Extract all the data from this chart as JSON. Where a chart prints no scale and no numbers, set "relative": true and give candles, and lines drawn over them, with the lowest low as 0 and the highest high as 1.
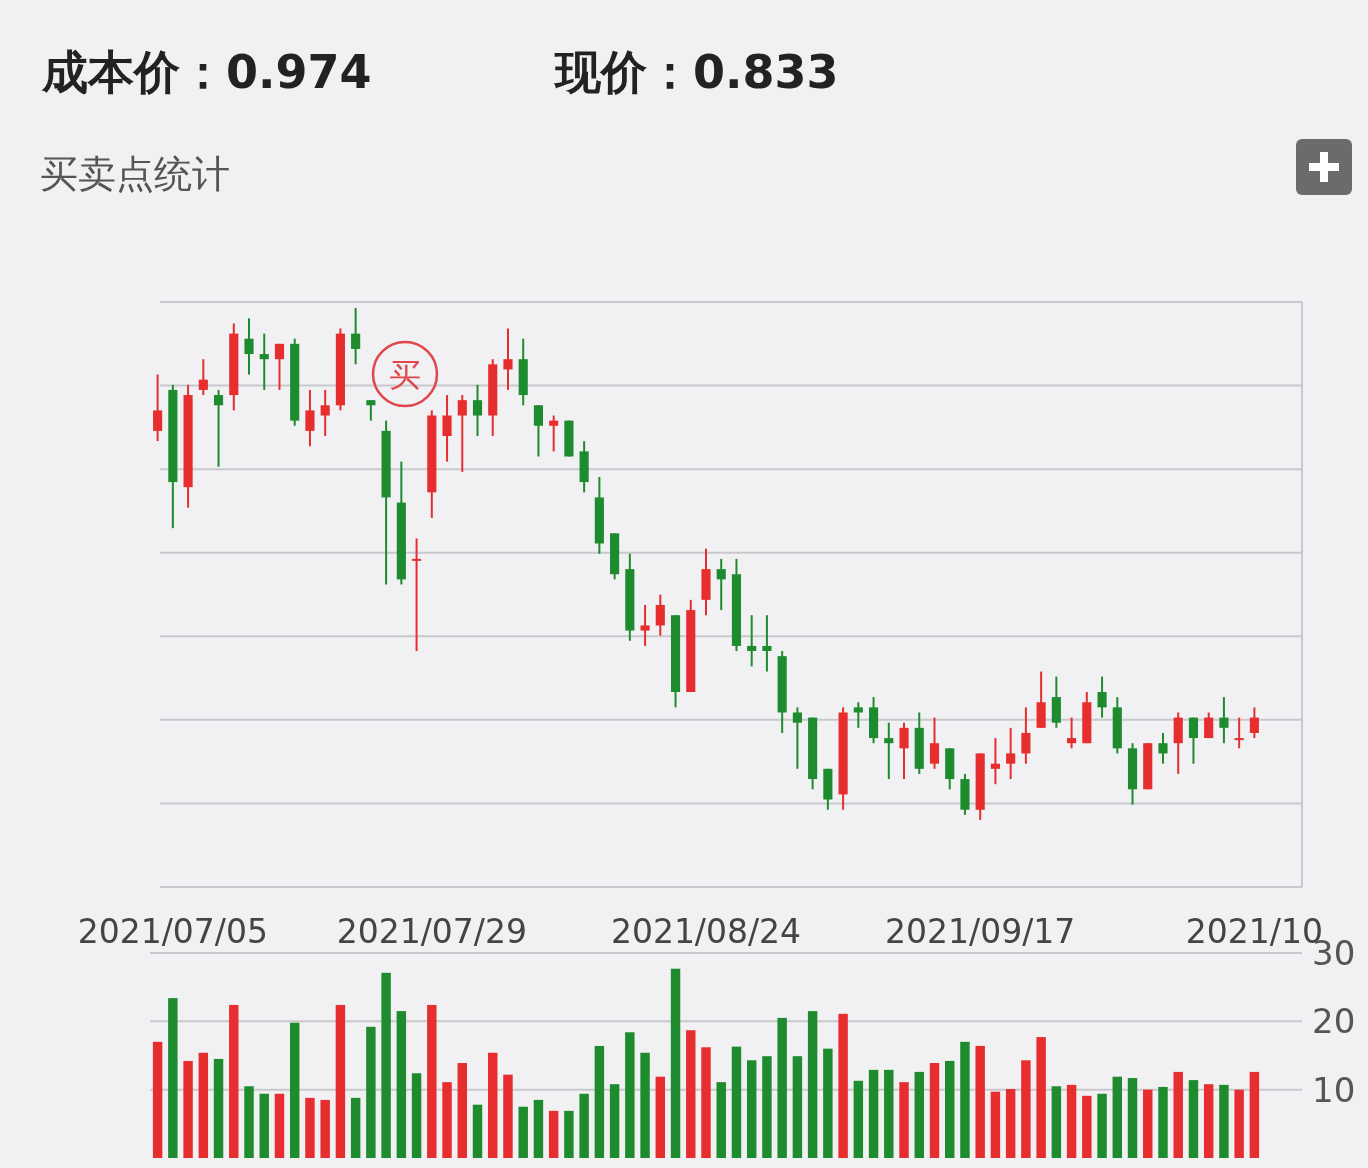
{
  "chart_data": [
    {
      "type": "candlestick",
      "title": "买卖点统计",
      "annotations": [
        "成本价：0.974",
        "现价：0.833",
        "买"
      ],
      "relative": true,
      "grid": "y",
      "categories": [
        null,
        "2021/07/05",
        null,
        null,
        null,
        null,
        null,
        null,
        null,
        null,
        null,
        null,
        null,
        null,
        null,
        null,
        null,
        null,
        "2021/07/29",
        null,
        null,
        null,
        null,
        null,
        null,
        null,
        null,
        null,
        null,
        null,
        null,
        null,
        null,
        null,
        null,
        null,
        "2021/08/24",
        null,
        null,
        null,
        null,
        null,
        null,
        null,
        null,
        null,
        null,
        null,
        null,
        null,
        null,
        null,
        null,
        null,
        "2021/09/17",
        null,
        null,
        null,
        null,
        null,
        null,
        null,
        null,
        null,
        null,
        null,
        null,
        null,
        null,
        null,
        null,
        null,
        "2021/10"
      ],
      "ohlc": [
        [
          0.76,
          0.87,
          0.74,
          0.8
        ],
        [
          0.84,
          0.85,
          0.57,
          0.66
        ],
        [
          0.65,
          0.85,
          0.61,
          0.83
        ],
        [
          0.84,
          0.9,
          0.83,
          0.86
        ],
        [
          0.83,
          0.84,
          0.69,
          0.81
        ],
        [
          0.83,
          0.97,
          0.8,
          0.95
        ],
        [
          0.94,
          0.98,
          0.87,
          0.91
        ],
        [
          0.91,
          0.95,
          0.84,
          0.9
        ],
        [
          0.9,
          0.93,
          0.84,
          0.93
        ],
        [
          0.93,
          0.94,
          0.77,
          0.78
        ],
        [
          0.76,
          0.84,
          0.73,
          0.8
        ],
        [
          0.79,
          0.84,
          0.75,
          0.81
        ],
        [
          0.81,
          0.96,
          0.8,
          0.95
        ],
        [
          0.95,
          1,
          0.89,
          0.92
        ],
        [
          0.82,
          0.82,
          0.78,
          0.81
        ],
        [
          0.76,
          0.78,
          0.46,
          0.63
        ],
        [
          0.62,
          0.7,
          0.46,
          0.47
        ],
        [
          0.51,
          0.55,
          0.33,
          0.51
        ],
        [
          0.64,
          0.8,
          0.59,
          0.79
        ],
        [
          0.75,
          0.83,
          0.7,
          0.79
        ],
        [
          0.79,
          0.83,
          0.68,
          0.82
        ],
        [
          0.82,
          0.85,
          0.75,
          0.79
        ],
        [
          0.79,
          0.9,
          0.75,
          0.89
        ],
        [
          0.88,
          0.96,
          0.84,
          0.9
        ],
        [
          0.9,
          0.94,
          0.81,
          0.83
        ],
        [
          0.81,
          0.81,
          0.71,
          0.77
        ],
        [
          0.77,
          0.79,
          0.72,
          0.78
        ],
        [
          0.78,
          0.78,
          0.71,
          0.71
        ],
        [
          0.72,
          0.74,
          0.64,
          0.66
        ],
        [
          0.63,
          0.67,
          0.52,
          0.54
        ],
        [
          0.56,
          0.56,
          0.47,
          0.48
        ],
        [
          0.49,
          0.52,
          0.35,
          0.37
        ],
        [
          0.37,
          0.42,
          0.34,
          0.38
        ],
        [
          0.38,
          0.44,
          0.36,
          0.42
        ],
        [
          0.4,
          0.4,
          0.22,
          0.25
        ],
        [
          0.25,
          0.43,
          0.25,
          0.41
        ],
        [
          0.43,
          0.53,
          0.4,
          0.49
        ],
        [
          0.49,
          0.51,
          0.41,
          0.47
        ],
        [
          0.48,
          0.51,
          0.33,
          0.34
        ],
        [
          0.34,
          0.4,
          0.3,
          0.33
        ],
        [
          0.34,
          0.4,
          0.29,
          0.33
        ],
        [
          0.32,
          0.33,
          0.17,
          0.21
        ],
        [
          0.21,
          0.22,
          0.1,
          0.19
        ],
        [
          0.2,
          0.2,
          0.06,
          0.08
        ],
        [
          0.1,
          0.1,
          0.02,
          0.04
        ],
        [
          0.05,
          0.22,
          0.02,
          0.21
        ],
        [
          0.22,
          0.23,
          0.18,
          0.21
        ],
        [
          0.22,
          0.24,
          0.15,
          0.16
        ],
        [
          0.16,
          0.19,
          0.08,
          0.15
        ],
        [
          0.14,
          0.19,
          0.08,
          0.18
        ],
        [
          0.18,
          0.21,
          0.09,
          0.1
        ],
        [
          0.11,
          0.2,
          0.1,
          0.15
        ],
        [
          0.14,
          0.14,
          0.06,
          0.08
        ],
        [
          0.08,
          0.09,
          0.01,
          0.02
        ],
        [
          0.02,
          0.13,
          0,
          0.13
        ],
        [
          0.1,
          0.16,
          0.07,
          0.11
        ],
        [
          0.11,
          0.18,
          0.08,
          0.13
        ],
        [
          0.13,
          0.22,
          0.11,
          0.17
        ],
        [
          0.18,
          0.29,
          0.18,
          0.23
        ],
        [
          0.24,
          0.28,
          0.18,
          0.19
        ],
        [
          0.15,
          0.2,
          0.14,
          0.16
        ],
        [
          0.15,
          0.25,
          0.15,
          0.23
        ],
        [
          0.25,
          0.28,
          0.2,
          0.22
        ],
        [
          0.22,
          0.24,
          0.13,
          0.14
        ],
        [
          0.14,
          0.15,
          0.03,
          0.06
        ],
        [
          0.06,
          0.15,
          0.06,
          0.15
        ],
        [
          0.15,
          0.17,
          0.11,
          0.13
        ],
        [
          0.15,
          0.21,
          0.09,
          0.2
        ],
        [
          0.2,
          0.2,
          0.11,
          0.16
        ],
        [
          0.16,
          0.21,
          0.16,
          0.2
        ],
        [
          0.2,
          0.24,
          0.15,
          0.18
        ],
        [
          0.16,
          0.2,
          0.14,
          0.16
        ],
        [
          0.17,
          0.22,
          0.16,
          0.2
        ]
      ],
      "colors": [
        "#e62e2e",
        "#1e8c2e",
        "#e62e2e",
        "#e62e2e",
        "#1e8c2e",
        "#e62e2e",
        "#1e8c2e",
        "#1e8c2e",
        "#e62e2e",
        "#1e8c2e",
        "#e62e2e",
        "#e62e2e",
        "#e62e2e",
        "#1e8c2e",
        "#1e8c2e",
        "#1e8c2e",
        "#1e8c2e",
        "#e62e2e",
        "#e62e2e",
        "#e62e2e",
        "#e62e2e",
        "#1e8c2e",
        "#e62e2e",
        "#e62e2e",
        "#1e8c2e",
        "#1e8c2e",
        "#e62e2e",
        "#1e8c2e",
        "#1e8c2e",
        "#1e8c2e",
        "#1e8c2e",
        "#1e8c2e",
        "#e62e2e",
        "#e62e2e",
        "#1e8c2e",
        "#e62e2e",
        "#e62e2e",
        "#1e8c2e",
        "#1e8c2e",
        "#1e8c2e",
        "#1e8c2e",
        "#1e8c2e",
        "#1e8c2e",
        "#1e8c2e",
        "#1e8c2e",
        "#e62e2e",
        "#1e8c2e",
        "#1e8c2e",
        "#1e8c2e",
        "#e62e2e",
        "#1e8c2e",
        "#e62e2e",
        "#1e8c2e",
        "#1e8c2e",
        "#e62e2e",
        "#e62e2e",
        "#e62e2e",
        "#e62e2e",
        "#e62e2e",
        "#1e8c2e",
        "#e62e2e",
        "#e62e2e",
        "#1e8c2e",
        "#1e8c2e",
        "#1e8c2e",
        "#e62e2e",
        "#1e8c2e",
        "#e62e2e",
        "#1e8c2e",
        "#e62e2e",
        "#1e8c2e",
        "#e62e2e",
        "#e62e2e"
      ]
    },
    {
      "type": "bar",
      "grid": "y",
      "ylim": [
        0,
        30
      ],
      "yticks": [
        10,
        20,
        30
      ],
      "categories": [
        null,
        null,
        null,
        null,
        null,
        null,
        null,
        null,
        null,
        null,
        null,
        null,
        null,
        null,
        null,
        null,
        null,
        null,
        null,
        null,
        null,
        null,
        null,
        null,
        null,
        null,
        null,
        null,
        null,
        null,
        null,
        null,
        null,
        null,
        null,
        null,
        null,
        null,
        null,
        null,
        null,
        null,
        null,
        null,
        null,
        null,
        null,
        null,
        null,
        null,
        null,
        null,
        null,
        null,
        null,
        null,
        null,
        null,
        null,
        null,
        null,
        null,
        null,
        null,
        null,
        null,
        null,
        null,
        null,
        null,
        null,
        null,
        null
      ],
      "values": [
        17.0,
        23.4,
        14.2,
        15.4,
        14.5,
        22.4,
        10.5,
        9.4,
        9.4,
        19.8,
        8.8,
        8.5,
        22.4,
        8.8,
        19.2,
        27.1,
        21.5,
        12.4,
        22.4,
        11.1,
        13.9,
        7.8,
        15.4,
        12.2,
        7.5,
        8.5,
        6.9,
        6.9,
        9.4,
        16.4,
        10.8,
        18.4,
        15.4,
        11.9,
        27.7,
        18.7,
        16.2,
        11.1,
        16.3,
        14.3,
        14.9,
        20.5,
        14.9,
        21.5,
        16.0,
        21.1,
        11.3,
        12.9,
        12.9,
        11.1,
        12.6,
        13.9,
        14.2,
        17.0,
        16.4,
        9.7,
        10.1,
        14.3,
        17.7,
        10.5,
        10.7,
        9.1,
        9.4,
        11.9,
        11.7,
        10.0,
        10.4,
        12.6,
        11.4,
        10.8,
        10.7,
        10.0,
        12.6
      ],
      "colors": [
        "#e62e2e",
        "#1e8c2e",
        "#e62e2e",
        "#e62e2e",
        "#1e8c2e",
        "#e62e2e",
        "#1e8c2e",
        "#1e8c2e",
        "#e62e2e",
        "#1e8c2e",
        "#e62e2e",
        "#e62e2e",
        "#e62e2e",
        "#1e8c2e",
        "#1e8c2e",
        "#1e8c2e",
        "#1e8c2e",
        "#1e8c2e",
        "#e62e2e",
        "#e62e2e",
        "#e62e2e",
        "#1e8c2e",
        "#e62e2e",
        "#e62e2e",
        "#1e8c2e",
        "#1e8c2e",
        "#e62e2e",
        "#1e8c2e",
        "#1e8c2e",
        "#1e8c2e",
        "#1e8c2e",
        "#1e8c2e",
        "#1e8c2e",
        "#e62e2e",
        "#1e8c2e",
        "#e62e2e",
        "#e62e2e",
        "#1e8c2e",
        "#1e8c2e",
        "#1e8c2e",
        "#1e8c2e",
        "#1e8c2e",
        "#1e8c2e",
        "#1e8c2e",
        "#1e8c2e",
        "#e62e2e",
        "#1e8c2e",
        "#1e8c2e",
        "#1e8c2e",
        "#e62e2e",
        "#1e8c2e",
        "#e62e2e",
        "#1e8c2e",
        "#1e8c2e",
        "#e62e2e",
        "#e62e2e",
        "#e62e2e",
        "#e62e2e",
        "#e62e2e",
        "#1e8c2e",
        "#e62e2e",
        "#e62e2e",
        "#1e8c2e",
        "#1e8c2e",
        "#1e8c2e",
        "#e62e2e",
        "#1e8c2e",
        "#e62e2e",
        "#1e8c2e",
        "#e62e2e",
        "#1e8c2e",
        "#e62e2e",
        "#e62e2e"
      ]
    }
  ]
}
